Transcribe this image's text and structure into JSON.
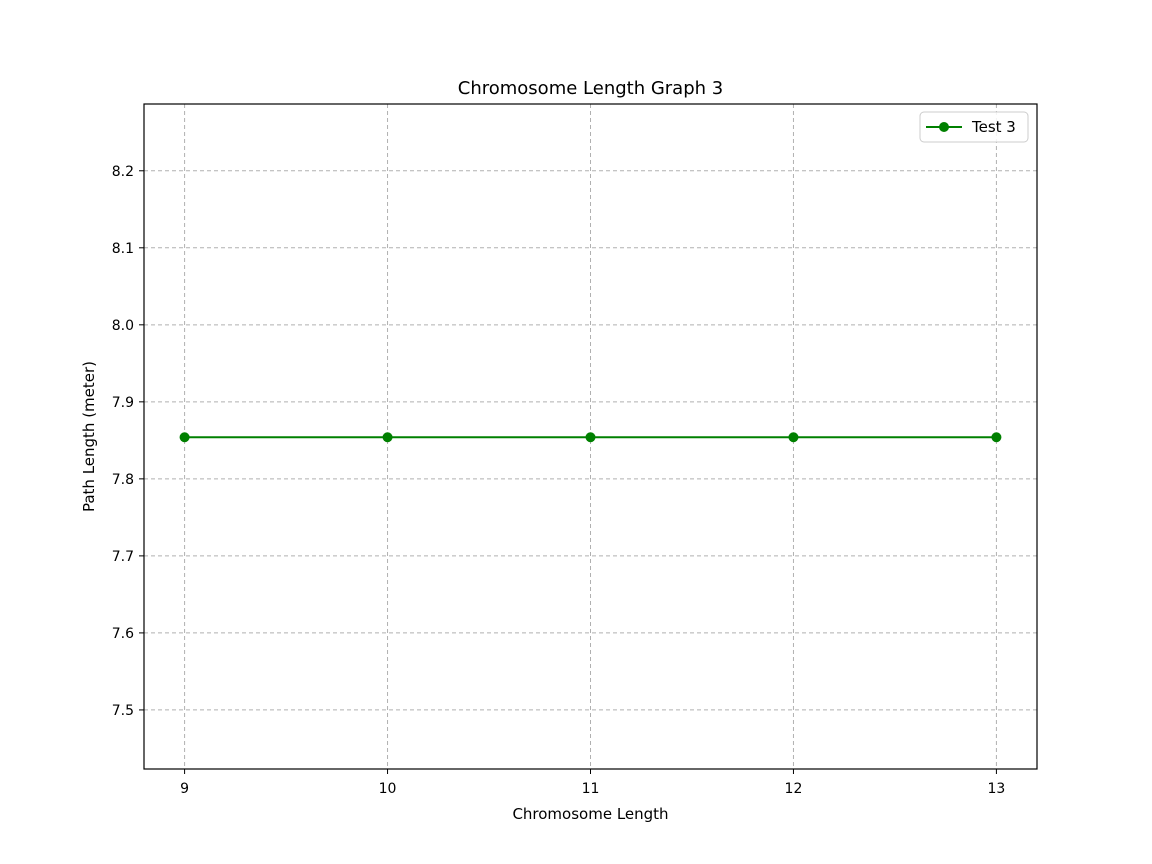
{
  "chart_data": {
    "type": "line",
    "title": "Chromosome Length Graph 3",
    "xlabel": "Chromosome Length",
    "ylabel": "Path Length (meter)",
    "x": [
      9,
      10,
      11,
      12,
      13
    ],
    "xlim": [
      8.8,
      13.2
    ],
    "ylim": [
      7.4233,
      8.2867
    ],
    "xticks": [
      "9",
      "10",
      "11",
      "12",
      "13"
    ],
    "yticks": [
      "7.5",
      "7.6",
      "7.7",
      "7.8",
      "7.9",
      "8.0",
      "8.1",
      "8.2"
    ],
    "grid": true,
    "grid_style": "dashed",
    "legend_position": "top-right",
    "series": [
      {
        "name": "Test 3",
        "color": "#008000",
        "marker": "circle",
        "values": [
          7.854,
          7.854,
          7.854,
          7.854,
          7.854
        ]
      }
    ]
  }
}
